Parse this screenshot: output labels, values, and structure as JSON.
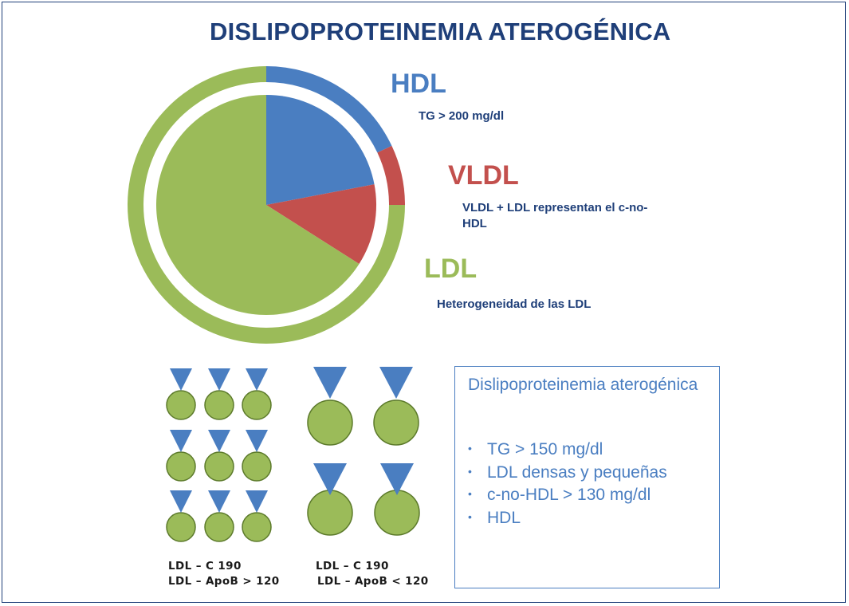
{
  "title": "DISLIPOPROTEINEMIA ATEROGÉNICA",
  "colors": {
    "hdl": "#4a7ec1",
    "vldl": "#c3504d",
    "ldl": "#9bbb59",
    "navy": "#1f3f79"
  },
  "chart_data": {
    "type": "pie",
    "title": "DISLIPOPROTEINEMIA ATEROGÉNICA",
    "inner": {
      "labels": [
        "HDL",
        "VLDL",
        "LDL"
      ],
      "values": [
        22,
        12,
        66
      ]
    },
    "outer_ring": {
      "labels": [
        "HDL",
        "VLDL",
        "LDL"
      ],
      "values": [
        18,
        7,
        75
      ]
    }
  },
  "labels": {
    "hdl": "HDL",
    "vldl": "VLDL",
    "ldl": "LDL"
  },
  "notes": {
    "hdl": "TG > 200 mg/dl",
    "vldl": "VLDL + LDL representan el c-no-HDL",
    "ldl": "Heterogeneidad de las LDL"
  },
  "particles": {
    "small_group": {
      "count": 9
    },
    "large_group": {
      "count": 4
    }
  },
  "captions": {
    "a1": "LDL – C 190",
    "a2": "LDL – ApoB > 120",
    "b1": "LDL – C 190",
    "b2": "LDL – ApoB < 120"
  },
  "box": {
    "title": "Dislipoproteinemia aterogénica",
    "items": [
      "TG > 150 mg/dl",
      "LDL densas y pequeñas",
      "c-no-HDL > 130 mg/dl",
      "HDL"
    ]
  }
}
